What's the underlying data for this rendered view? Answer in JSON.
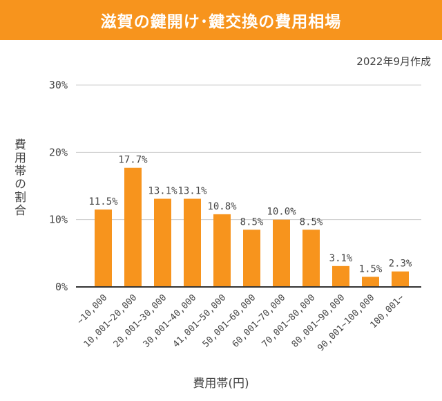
{
  "header": {
    "title": "滋賀の鍵開け･鍵交換の費用相場"
  },
  "date_note": "2022年9月作成",
  "chart_data": {
    "type": "bar",
    "title": "滋賀の鍵開け･鍵交換の費用相場",
    "xlabel": "費用帯(円)",
    "ylabel": "費用帯の割合",
    "ylim": [
      0,
      30
    ],
    "yticks": [
      0,
      10,
      20,
      30
    ],
    "ytick_labels": [
      "0%",
      "10%",
      "20%",
      "30%"
    ],
    "grid": true,
    "bar_color": "#f7941d",
    "categories": [
      "~10,000",
      "10,001~20,000",
      "20,001~30,000",
      "30,001~40,000",
      "41,001~50,000",
      "50,001~60,000",
      "60,001~70,000",
      "70,001~80,000",
      "80,001~90,000",
      "90,001~100,000",
      "100,001~"
    ],
    "values": [
      11.5,
      17.7,
      13.1,
      13.1,
      10.8,
      8.5,
      10.0,
      8.5,
      3.1,
      1.5,
      2.3
    ],
    "value_labels": [
      "11.5%",
      "17.7%",
      "13.1%",
      "13.1%",
      "10.8%",
      "8.5%",
      "10.0%",
      "8.5%",
      "3.1%",
      "1.5%",
      "2.3%"
    ]
  }
}
